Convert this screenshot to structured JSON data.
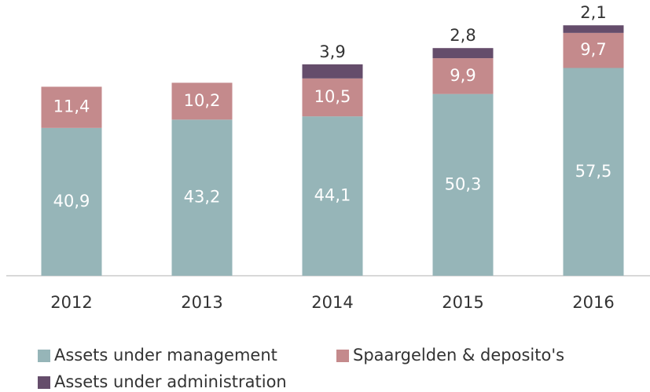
{
  "chart_data": {
    "type": "stacked_bar",
    "categories": [
      "2012",
      "2013",
      "2014",
      "2015",
      "2016"
    ],
    "series": [
      {
        "name": "Assets under management",
        "color": "#96b5b8",
        "values": [
          40.9,
          43.2,
          44.1,
          50.3,
          57.5
        ],
        "value_labels": [
          "40,9",
          "43,2",
          "44,1",
          "50,3",
          "57,5"
        ]
      },
      {
        "name": "Spaargelden & deposito's",
        "color": "#c48a8c",
        "values": [
          11.4,
          10.2,
          10.5,
          9.9,
          9.7
        ],
        "value_labels": [
          "11,4",
          "10,2",
          "10,5",
          "9,9",
          "9,7"
        ]
      },
      {
        "name": "Assets under administration",
        "color": "#654d6b",
        "values": [
          null,
          null,
          3.9,
          2.8,
          2.1
        ],
        "value_labels": [
          null,
          null,
          "3,9",
          "2,8",
          "2,1"
        ]
      }
    ],
    "ylim": [
      0,
      70
    ]
  }
}
